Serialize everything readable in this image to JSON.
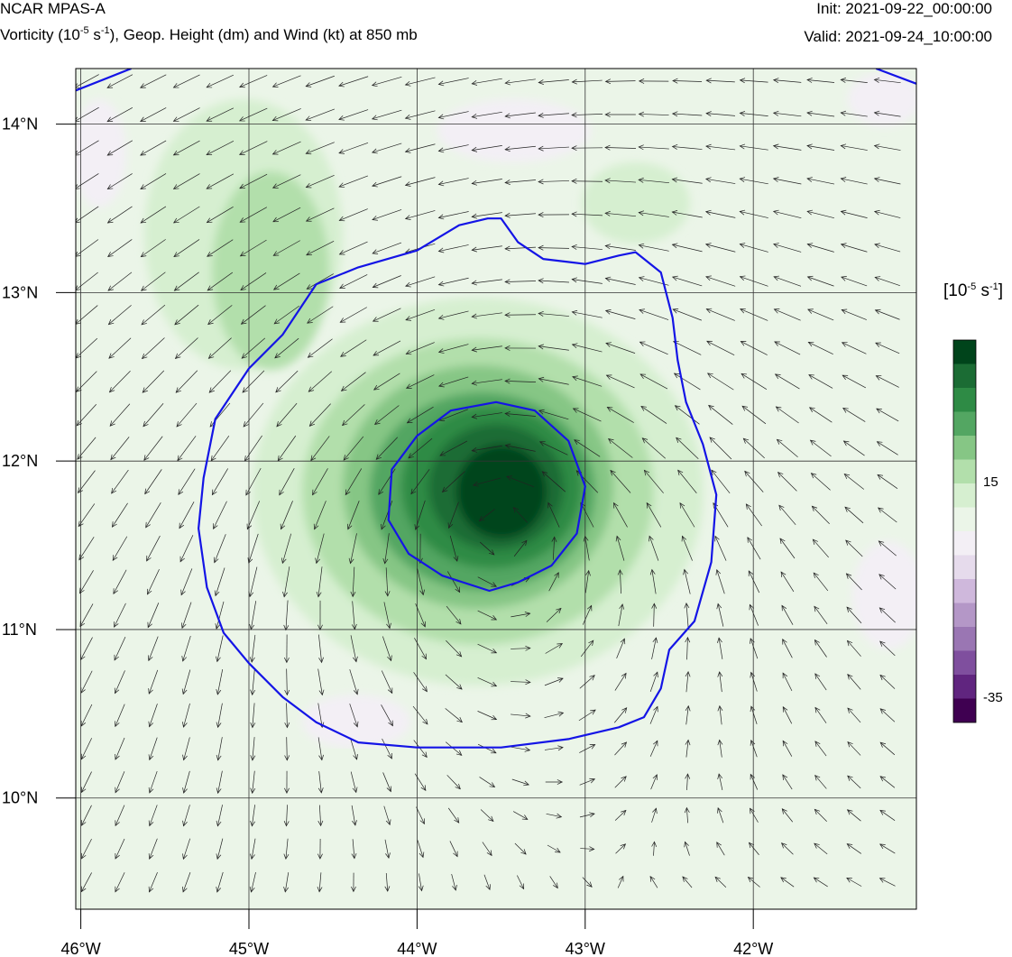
{
  "header": {
    "model": "NCAR MPAS-A",
    "desc_pre": "Vorticity (10",
    "desc_exp1": "-5",
    "desc_mid": " s",
    "desc_exp2": "-1",
    "desc_post": "), Geop. Height (dm) and Wind (kt) at 850 mb",
    "init": "Init: 2021-09-22_00:00:00",
    "valid": "Valid: 2021-09-24_10:00:00"
  },
  "map": {
    "lon_range": [
      -46.03,
      -41.03
    ],
    "lat_range": [
      9.34,
      14.33
    ],
    "lon_ticks": [
      {
        "value": -46,
        "label": "46°W"
      },
      {
        "value": -45,
        "label": "45°W"
      },
      {
        "value": -44,
        "label": "44°W"
      },
      {
        "value": -43,
        "label": "43°W"
      },
      {
        "value": -42,
        "label": "42°W"
      }
    ],
    "lat_ticks": [
      {
        "value": 10,
        "label": "10°N"
      },
      {
        "value": 11,
        "label": "11°N"
      },
      {
        "value": 12,
        "label": "12°N"
      },
      {
        "value": 13,
        "label": "13°N"
      },
      {
        "value": 14,
        "label": "14°N"
      }
    ],
    "grid": true,
    "vortex_center": {
      "lon": -43.56,
      "lat": 11.75
    },
    "contours": [
      {
        "name": "inner",
        "points": [
          [
            -43.53,
            12.35
          ],
          [
            -43.3,
            12.3
          ],
          [
            -43.1,
            12.12
          ],
          [
            -43.0,
            11.85
          ],
          [
            -43.05,
            11.57
          ],
          [
            -43.2,
            11.38
          ],
          [
            -43.4,
            11.28
          ],
          [
            -43.57,
            11.23
          ],
          [
            -43.85,
            11.32
          ],
          [
            -44.05,
            11.45
          ],
          [
            -44.17,
            11.65
          ],
          [
            -44.15,
            11.95
          ],
          [
            -44.0,
            12.15
          ],
          [
            -43.8,
            12.3
          ]
        ]
      },
      {
        "name": "outer",
        "points": [
          [
            -46.03,
            14.2
          ],
          [
            -45.7,
            14.33
          ]
        ]
      },
      {
        "name": "outer-ne",
        "points": [
          [
            -41.27,
            14.33
          ],
          [
            -41.03,
            14.24
          ]
        ]
      },
      {
        "name": "main",
        "points": [
          [
            -43.58,
            13.44
          ],
          [
            -43.5,
            13.44
          ],
          [
            -43.4,
            13.3
          ],
          [
            -43.25,
            13.2
          ],
          [
            -43.0,
            13.17
          ],
          [
            -42.8,
            13.22
          ],
          [
            -42.7,
            13.24
          ],
          [
            -42.55,
            13.12
          ],
          [
            -42.48,
            12.85
          ],
          [
            -42.45,
            12.6
          ],
          [
            -42.4,
            12.35
          ],
          [
            -42.3,
            12.1
          ],
          [
            -42.22,
            11.8
          ],
          [
            -42.25,
            11.4
          ],
          [
            -42.35,
            11.05
          ],
          [
            -42.5,
            10.88
          ],
          [
            -42.55,
            10.65
          ],
          [
            -42.65,
            10.48
          ],
          [
            -42.8,
            10.42
          ],
          [
            -43.1,
            10.35
          ],
          [
            -43.5,
            10.3
          ],
          [
            -44.0,
            10.3
          ],
          [
            -44.35,
            10.33
          ],
          [
            -44.6,
            10.45
          ],
          [
            -44.8,
            10.6
          ],
          [
            -45.0,
            10.8
          ],
          [
            -45.15,
            10.98
          ],
          [
            -45.25,
            11.25
          ],
          [
            -45.3,
            11.6
          ],
          [
            -45.27,
            11.9
          ],
          [
            -45.2,
            12.25
          ],
          [
            -45.0,
            12.55
          ],
          [
            -44.8,
            12.75
          ],
          [
            -44.6,
            13.05
          ],
          [
            -44.35,
            13.15
          ],
          [
            -44.0,
            13.25
          ],
          [
            -43.75,
            13.4
          ]
        ]
      }
    ]
  },
  "colorbar": {
    "unit_pre": "[10",
    "unit_exp1": "-5",
    "unit_mid": " s",
    "unit_exp2": "-1",
    "unit_post": "]",
    "colors_top_to_bottom": [
      "#00441b",
      "#1b6c34",
      "#2e8b45",
      "#53a662",
      "#86c685",
      "#b2dfab",
      "#d6efd0",
      "#ebf5e8",
      "#f3eff5",
      "#e6dbec",
      "#cfb8dc",
      "#b497c7",
      "#9a76b3",
      "#7f4f9e",
      "#60257f",
      "#3f0051"
    ],
    "labels": [
      {
        "text": "15",
        "after_box": 6
      },
      {
        "text": "-35",
        "after_box": 15
      }
    ]
  }
}
